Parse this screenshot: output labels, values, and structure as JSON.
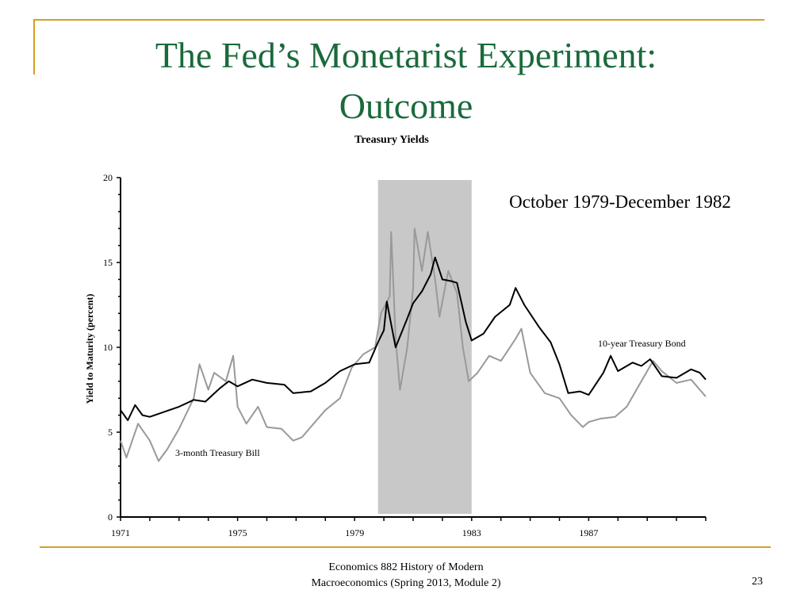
{
  "slide": {
    "title_line1": "The Fed’s Monetarist Experiment:",
    "title_line2": "Outcome",
    "footer_line1": "Economics 882  History of Modern",
    "footer_line2": "Macroeconomics (Spring 2013, Module 2)",
    "page_number": "23",
    "accent_color": "#d4a020",
    "title_color": "#1a6a3c"
  },
  "chart_data": {
    "type": "line",
    "title": "Treasury Yields",
    "ylabel": "Yield to Maturity (percent)",
    "xlabel": "",
    "xlim": [
      1971,
      1991
    ],
    "ylim": [
      0,
      20
    ],
    "x_ticks": [
      1971,
      1975,
      1979,
      1983,
      1987
    ],
    "y_ticks": [
      0,
      5,
      10,
      15,
      20
    ],
    "shaded_region": {
      "from": 1979.8,
      "to": 1983.0,
      "label": "October 1979-December 1982",
      "color": "#c8c8c8"
    },
    "series": [
      {
        "name": "10-year Treasury Bond",
        "color": "#000000",
        "points": [
          [
            1971.0,
            6.3
          ],
          [
            1971.25,
            5.7
          ],
          [
            1971.5,
            6.6
          ],
          [
            1971.75,
            6.0
          ],
          [
            1972.0,
            5.9
          ],
          [
            1972.5,
            6.2
          ],
          [
            1973.0,
            6.5
          ],
          [
            1973.5,
            6.9
          ],
          [
            1973.9,
            6.8
          ],
          [
            1974.4,
            7.6
          ],
          [
            1974.7,
            8.0
          ],
          [
            1975.0,
            7.7
          ],
          [
            1975.5,
            8.1
          ],
          [
            1976.0,
            7.9
          ],
          [
            1976.6,
            7.8
          ],
          [
            1976.9,
            7.3
          ],
          [
            1977.5,
            7.4
          ],
          [
            1978.0,
            7.9
          ],
          [
            1978.5,
            8.6
          ],
          [
            1979.0,
            9.0
          ],
          [
            1979.5,
            9.1
          ],
          [
            1979.8,
            10.3
          ],
          [
            1980.0,
            11.0
          ],
          [
            1980.1,
            12.7
          ],
          [
            1980.4,
            10.0
          ],
          [
            1980.8,
            11.7
          ],
          [
            1981.0,
            12.6
          ],
          [
            1981.3,
            13.3
          ],
          [
            1981.6,
            14.3
          ],
          [
            1981.75,
            15.3
          ],
          [
            1982.0,
            14.0
          ],
          [
            1982.3,
            13.9
          ],
          [
            1982.5,
            13.8
          ],
          [
            1982.8,
            11.5
          ],
          [
            1983.0,
            10.4
          ],
          [
            1983.4,
            10.8
          ],
          [
            1983.8,
            11.8
          ],
          [
            1984.3,
            12.5
          ],
          [
            1984.5,
            13.5
          ],
          [
            1984.8,
            12.5
          ],
          [
            1985.3,
            11.2
          ],
          [
            1985.7,
            10.3
          ],
          [
            1986.0,
            9.0
          ],
          [
            1986.3,
            7.3
          ],
          [
            1986.7,
            7.4
          ],
          [
            1987.0,
            7.2
          ],
          [
            1987.5,
            8.5
          ],
          [
            1987.75,
            9.5
          ],
          [
            1988.0,
            8.6
          ],
          [
            1988.5,
            9.1
          ],
          [
            1988.8,
            8.9
          ],
          [
            1989.1,
            9.3
          ],
          [
            1989.5,
            8.3
          ],
          [
            1990.0,
            8.2
          ],
          [
            1990.5,
            8.7
          ],
          [
            1990.8,
            8.5
          ],
          [
            1991.0,
            8.1
          ]
        ]
      },
      {
        "name": "3-month Treasury Bill",
        "color": "#999999",
        "points": [
          [
            1971.0,
            4.5
          ],
          [
            1971.2,
            3.5
          ],
          [
            1971.6,
            5.5
          ],
          [
            1972.0,
            4.5
          ],
          [
            1972.3,
            3.3
          ],
          [
            1972.6,
            4.0
          ],
          [
            1973.0,
            5.2
          ],
          [
            1973.5,
            7.0
          ],
          [
            1973.7,
            9.0
          ],
          [
            1974.0,
            7.5
          ],
          [
            1974.2,
            8.5
          ],
          [
            1974.6,
            8.0
          ],
          [
            1974.85,
            9.5
          ],
          [
            1975.0,
            6.5
          ],
          [
            1975.3,
            5.5
          ],
          [
            1975.7,
            6.5
          ],
          [
            1976.0,
            5.3
          ],
          [
            1976.5,
            5.2
          ],
          [
            1976.9,
            4.5
          ],
          [
            1977.2,
            4.7
          ],
          [
            1977.6,
            5.5
          ],
          [
            1978.0,
            6.3
          ],
          [
            1978.5,
            7.0
          ],
          [
            1978.9,
            8.8
          ],
          [
            1979.3,
            9.6
          ],
          [
            1979.7,
            10.0
          ],
          [
            1979.9,
            12.0
          ],
          [
            1980.2,
            13.0
          ],
          [
            1980.25,
            16.8
          ],
          [
            1980.4,
            10.5
          ],
          [
            1980.55,
            7.5
          ],
          [
            1980.8,
            10.0
          ],
          [
            1981.0,
            13.5
          ],
          [
            1981.05,
            17.0
          ],
          [
            1981.3,
            14.5
          ],
          [
            1981.5,
            16.8
          ],
          [
            1981.75,
            14.0
          ],
          [
            1981.9,
            11.8
          ],
          [
            1982.2,
            14.5
          ],
          [
            1982.5,
            13.2
          ],
          [
            1982.7,
            10.0
          ],
          [
            1982.9,
            8.0
          ],
          [
            1983.2,
            8.5
          ],
          [
            1983.6,
            9.5
          ],
          [
            1984.0,
            9.2
          ],
          [
            1984.5,
            10.5
          ],
          [
            1984.7,
            11.1
          ],
          [
            1985.0,
            8.5
          ],
          [
            1985.5,
            7.3
          ],
          [
            1986.0,
            7.0
          ],
          [
            1986.4,
            6.0
          ],
          [
            1986.8,
            5.3
          ],
          [
            1987.0,
            5.6
          ],
          [
            1987.4,
            5.8
          ],
          [
            1987.9,
            5.9
          ],
          [
            1988.3,
            6.5
          ],
          [
            1988.8,
            8.0
          ],
          [
            1989.2,
            9.2
          ],
          [
            1989.5,
            8.6
          ],
          [
            1990.0,
            7.9
          ],
          [
            1990.5,
            8.1
          ],
          [
            1991.0,
            7.1
          ]
        ]
      }
    ],
    "grid": false,
    "legend": "direct labels on lines"
  }
}
